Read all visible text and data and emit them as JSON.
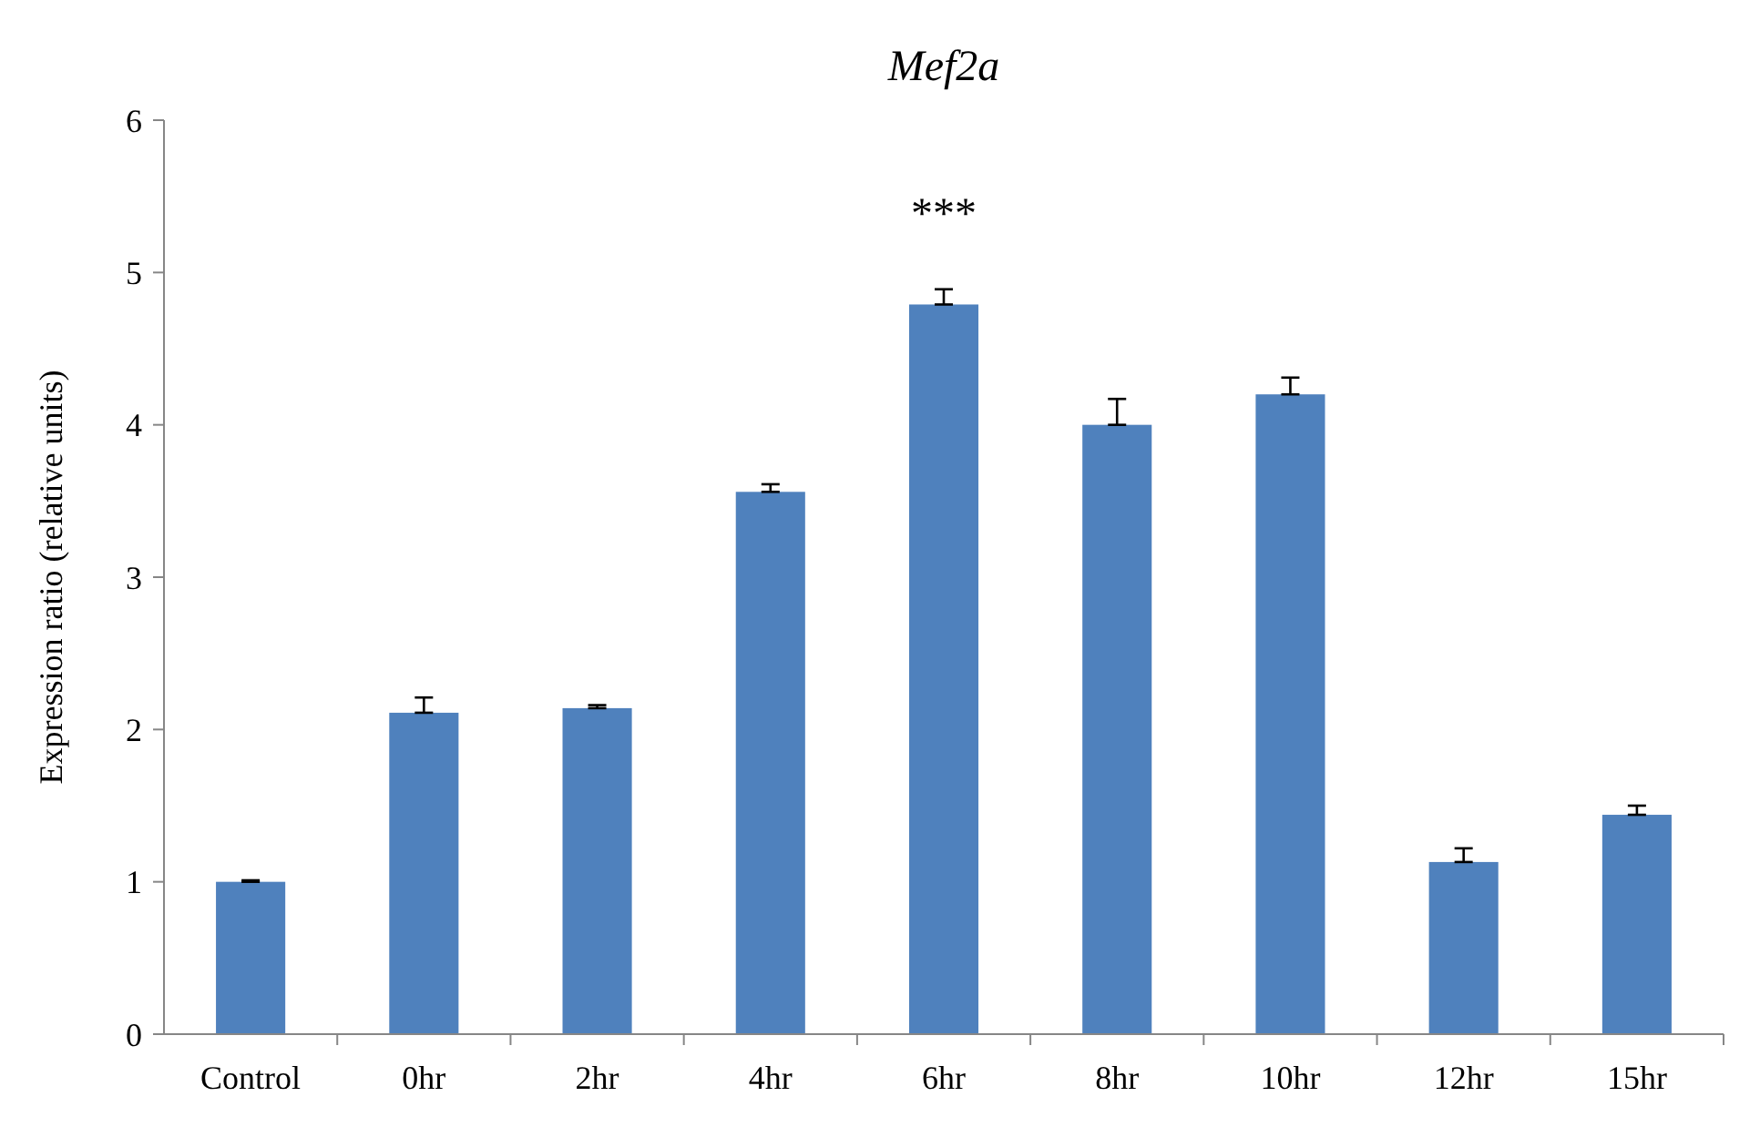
{
  "chart_data": {
    "type": "bar",
    "title": "Mef2a",
    "ylabel": "Expression ratio (relative  units)",
    "categories": [
      "Control",
      "0hr",
      "2hr",
      "4hr",
      "6hr",
      "8hr",
      "10hr",
      "12hr",
      "15hr"
    ],
    "values": [
      1.0,
      2.11,
      2.14,
      3.56,
      4.79,
      4.0,
      4.2,
      1.13,
      1.44
    ],
    "errors": [
      [
        1.0,
        1.01
      ],
      [
        2.11,
        2.21
      ],
      [
        2.14,
        2.16
      ],
      [
        3.56,
        3.61
      ],
      [
        4.79,
        4.89
      ],
      [
        4.0,
        4.17
      ],
      [
        4.2,
        4.31
      ],
      [
        1.13,
        1.22
      ],
      [
        1.44,
        1.5
      ]
    ],
    "color": "#4f81bd",
    "ylim": [
      0,
      6
    ],
    "yticks": [
      0,
      1,
      2,
      3,
      4,
      5,
      6
    ],
    "grid": false,
    "annotations": [
      "***"
    ]
  }
}
